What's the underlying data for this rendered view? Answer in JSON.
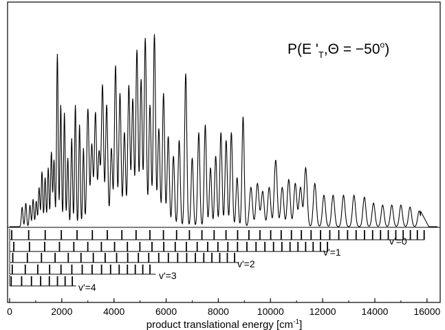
{
  "chart_data": {
    "type": "line",
    "title": "P(E '_T,Θ = −50°)",
    "title_parts": {
      "p_open": "P(E '",
      "sub_t": "T",
      "theta": ",Θ = −50",
      "deg": "o",
      "close": ")"
    },
    "xlabel": "product translational energy [cm⁻¹]",
    "xlabel_parts": {
      "main": "product translational energy [cm",
      "exponent": "-1",
      "close": "]"
    },
    "xlim": [
      0,
      16400
    ],
    "ylim": [
      0,
      1.0
    ],
    "x_ticks": [
      0,
      2000,
      4000,
      6000,
      8000,
      10000,
      12000,
      14000,
      16000
    ],
    "x_tick_labels": [
      "0",
      "2000",
      "4000",
      "6000",
      "8000",
      "10000",
      "12000",
      "14000",
      "16000"
    ],
    "grid": false,
    "series": [
      {
        "peaks": [
          {
            "x": 480,
            "y": 0.1
          },
          {
            "x": 620,
            "y": 0.12
          },
          {
            "x": 780,
            "y": 0.11
          },
          {
            "x": 900,
            "y": 0.14
          },
          {
            "x": 1020,
            "y": 0.13
          },
          {
            "x": 1130,
            "y": 0.2
          },
          {
            "x": 1240,
            "y": 0.28
          },
          {
            "x": 1360,
            "y": 0.25
          },
          {
            "x": 1480,
            "y": 0.3
          },
          {
            "x": 1600,
            "y": 0.38
          },
          {
            "x": 1700,
            "y": 0.34
          },
          {
            "x": 1830,
            "y": 0.88
          },
          {
            "x": 1960,
            "y": 0.62
          },
          {
            "x": 2100,
            "y": 0.58
          },
          {
            "x": 2230,
            "y": 0.35
          },
          {
            "x": 2380,
            "y": 0.45
          },
          {
            "x": 2520,
            "y": 0.62
          },
          {
            "x": 2680,
            "y": 0.52
          },
          {
            "x": 2830,
            "y": 0.4
          },
          {
            "x": 3000,
            "y": 0.6
          },
          {
            "x": 3150,
            "y": 0.42
          },
          {
            "x": 3290,
            "y": 0.58
          },
          {
            "x": 3430,
            "y": 0.38
          },
          {
            "x": 3560,
            "y": 0.72
          },
          {
            "x": 3720,
            "y": 0.62
          },
          {
            "x": 3900,
            "y": 0.4
          },
          {
            "x": 4060,
            "y": 0.82
          },
          {
            "x": 4230,
            "y": 0.68
          },
          {
            "x": 4400,
            "y": 0.48
          },
          {
            "x": 4570,
            "y": 0.72
          },
          {
            "x": 4720,
            "y": 0.65
          },
          {
            "x": 4880,
            "y": 0.9
          },
          {
            "x": 5040,
            "y": 0.75
          },
          {
            "x": 5200,
            "y": 0.96
          },
          {
            "x": 5380,
            "y": 0.62
          },
          {
            "x": 5550,
            "y": 0.98
          },
          {
            "x": 5720,
            "y": 0.5
          },
          {
            "x": 5900,
            "y": 0.68
          },
          {
            "x": 6080,
            "y": 0.46
          },
          {
            "x": 6280,
            "y": 0.36
          },
          {
            "x": 6500,
            "y": 0.44
          },
          {
            "x": 6750,
            "y": 0.78
          },
          {
            "x": 7000,
            "y": 0.35
          },
          {
            "x": 7250,
            "y": 0.48
          },
          {
            "x": 7500,
            "y": 0.52
          },
          {
            "x": 7700,
            "y": 0.3
          },
          {
            "x": 7900,
            "y": 0.36
          },
          {
            "x": 8100,
            "y": 0.48
          },
          {
            "x": 8300,
            "y": 0.44
          },
          {
            "x": 8500,
            "y": 0.48
          },
          {
            "x": 8720,
            "y": 0.25
          },
          {
            "x": 8950,
            "y": 0.56
          },
          {
            "x": 9250,
            "y": 0.2
          },
          {
            "x": 9500,
            "y": 0.22
          },
          {
            "x": 9700,
            "y": 0.18
          },
          {
            "x": 9950,
            "y": 0.2
          },
          {
            "x": 10200,
            "y": 0.34
          },
          {
            "x": 10450,
            "y": 0.2
          },
          {
            "x": 10700,
            "y": 0.24
          },
          {
            "x": 10950,
            "y": 0.22
          },
          {
            "x": 11150,
            "y": 0.2
          },
          {
            "x": 11350,
            "y": 0.3
          },
          {
            "x": 11700,
            "y": 0.22
          },
          {
            "x": 12050,
            "y": 0.16
          },
          {
            "x": 12400,
            "y": 0.16
          },
          {
            "x": 12800,
            "y": 0.16
          },
          {
            "x": 13200,
            "y": 0.16
          },
          {
            "x": 13600,
            "y": 0.15
          },
          {
            "x": 13950,
            "y": 0.12
          },
          {
            "x": 14300,
            "y": 0.11
          },
          {
            "x": 14650,
            "y": 0.11
          },
          {
            "x": 15000,
            "y": 0.11
          },
          {
            "x": 15350,
            "y": 0.1
          },
          {
            "x": 15700,
            "y": 0.08
          }
        ]
      }
    ],
    "progressions": [
      {
        "label": "v'=0",
        "start": 80,
        "spacing": 650,
        "decay": 0.975,
        "end": 15900
      },
      {
        "label": "v'=1",
        "start": 160,
        "spacing": 600,
        "decay": 0.972,
        "end": 12200
      },
      {
        "label": "v'=2",
        "start": 120,
        "spacing": 560,
        "decay": 0.966,
        "end": 8800
      },
      {
        "label": "v'=3",
        "start": 100,
        "spacing": 500,
        "decay": 0.955,
        "end": 5600
      },
      {
        "label": "v'=4",
        "start": 60,
        "spacing": 400,
        "decay": 0.94,
        "end": 2550
      }
    ]
  }
}
